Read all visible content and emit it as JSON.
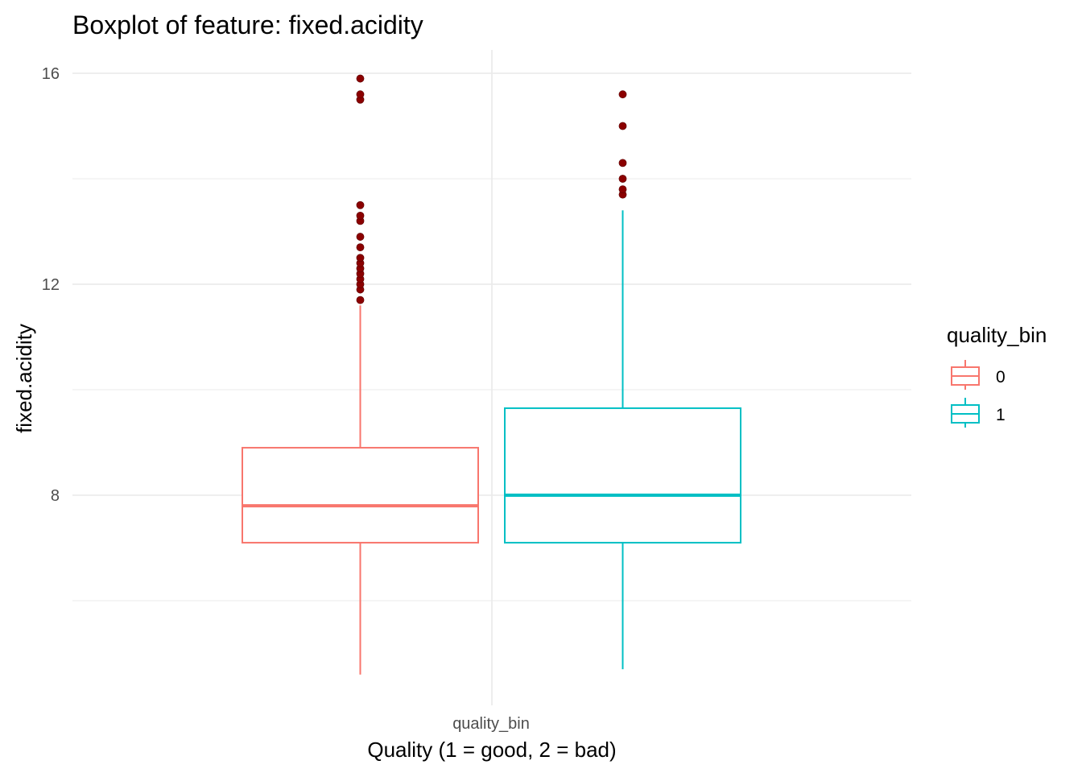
{
  "chart_data": {
    "type": "boxplot",
    "title": "Boxplot of feature: fixed.acidity",
    "xlabel": "Quality (1 = good, 2 = bad)",
    "ylabel": "fixed.acidity",
    "x_tick_label": "quality_bin",
    "ylim": [
      3.6,
      16.4
    ],
    "y_ticks": [
      8,
      12,
      16
    ],
    "y_minor_ticks": [
      6,
      10,
      14
    ],
    "grid": true,
    "legend": {
      "title": "quality_bin",
      "placement": "right",
      "entries": [
        "0",
        "1"
      ]
    },
    "outlier_color": "#8b0000",
    "series": [
      {
        "name": "0",
        "color": "#f8766d",
        "whisker_low": 4.6,
        "q1": 7.1,
        "median": 7.8,
        "q3": 8.9,
        "whisker_high": 11.6,
        "outliers": [
          11.7,
          11.9,
          12.0,
          12.1,
          12.2,
          12.3,
          12.4,
          12.5,
          12.7,
          12.9,
          13.2,
          13.3,
          13.5,
          15.5,
          15.6,
          15.9
        ]
      },
      {
        "name": "1",
        "color": "#00bfc4",
        "whisker_low": 4.7,
        "q1": 7.1,
        "median": 8.0,
        "q3": 9.65,
        "whisker_high": 13.4,
        "outliers": [
          13.7,
          13.8,
          14.0,
          14.3,
          15.0,
          15.6
        ]
      }
    ]
  }
}
